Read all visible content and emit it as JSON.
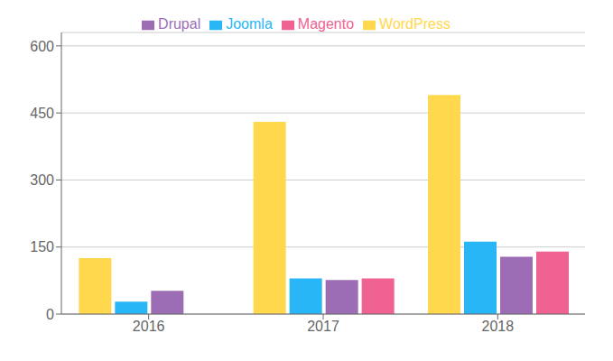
{
  "chart_data": {
    "type": "bar",
    "categories": [
      "2016",
      "2017",
      "2018"
    ],
    "series": [
      {
        "name": "WordPress",
        "color": "#FFD84D",
        "values": [
          125,
          430,
          490
        ]
      },
      {
        "name": "Joomla",
        "color": "#29B6F6",
        "values": [
          28,
          80,
          162
        ]
      },
      {
        "name": "Drupal",
        "color": "#9C6DB5",
        "values": [
          52,
          76,
          128
        ]
      },
      {
        "name": "Magento",
        "color": "#F06292",
        "values": [
          0,
          80,
          140
        ]
      }
    ],
    "ylim": [
      0,
      630
    ],
    "yticks": [
      0,
      150,
      300,
      450,
      600
    ],
    "grid": true,
    "legend": "top"
  }
}
